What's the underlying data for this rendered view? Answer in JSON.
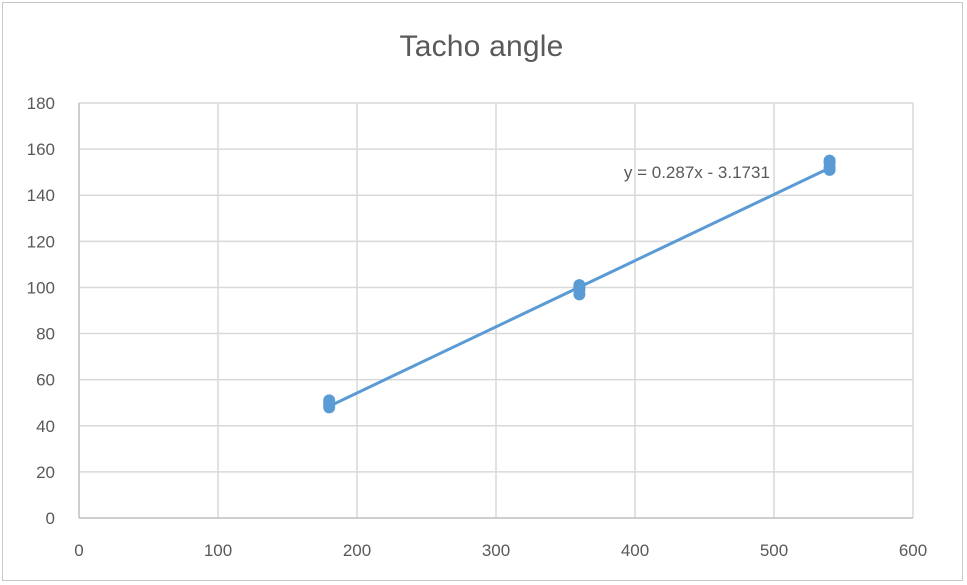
{
  "chart_data": {
    "type": "scatter",
    "title": "Tacho angle",
    "xlabel": "",
    "ylabel": "",
    "xlim": [
      0,
      600
    ],
    "ylim": [
      0,
      180
    ],
    "x_ticks": [
      0,
      100,
      200,
      300,
      400,
      500,
      600
    ],
    "y_ticks": [
      0,
      20,
      40,
      60,
      80,
      100,
      120,
      140,
      160,
      180
    ],
    "grid": true,
    "legend": "none",
    "series": [
      {
        "points": [
          {
            "x": 180,
            "y": 48
          },
          {
            "x": 180,
            "y": 49
          },
          {
            "x": 180,
            "y": 50
          },
          {
            "x": 180,
            "y": 51
          },
          {
            "x": 360,
            "y": 97
          },
          {
            "x": 360,
            "y": 99
          },
          {
            "x": 360,
            "y": 100
          },
          {
            "x": 360,
            "y": 101
          },
          {
            "x": 540,
            "y": 151
          },
          {
            "x": 540,
            "y": 152
          },
          {
            "x": 540,
            "y": 154
          },
          {
            "x": 540,
            "y": 155
          }
        ],
        "color": "#5b9bd5"
      }
    ],
    "trendline": {
      "slope": 0.287,
      "intercept": -3.1731,
      "x_range": [
        180,
        540
      ],
      "label": "y = 0.287x - 3.1731",
      "color": "#5b9bd5"
    },
    "gridline_color": "#d9d9d9"
  }
}
